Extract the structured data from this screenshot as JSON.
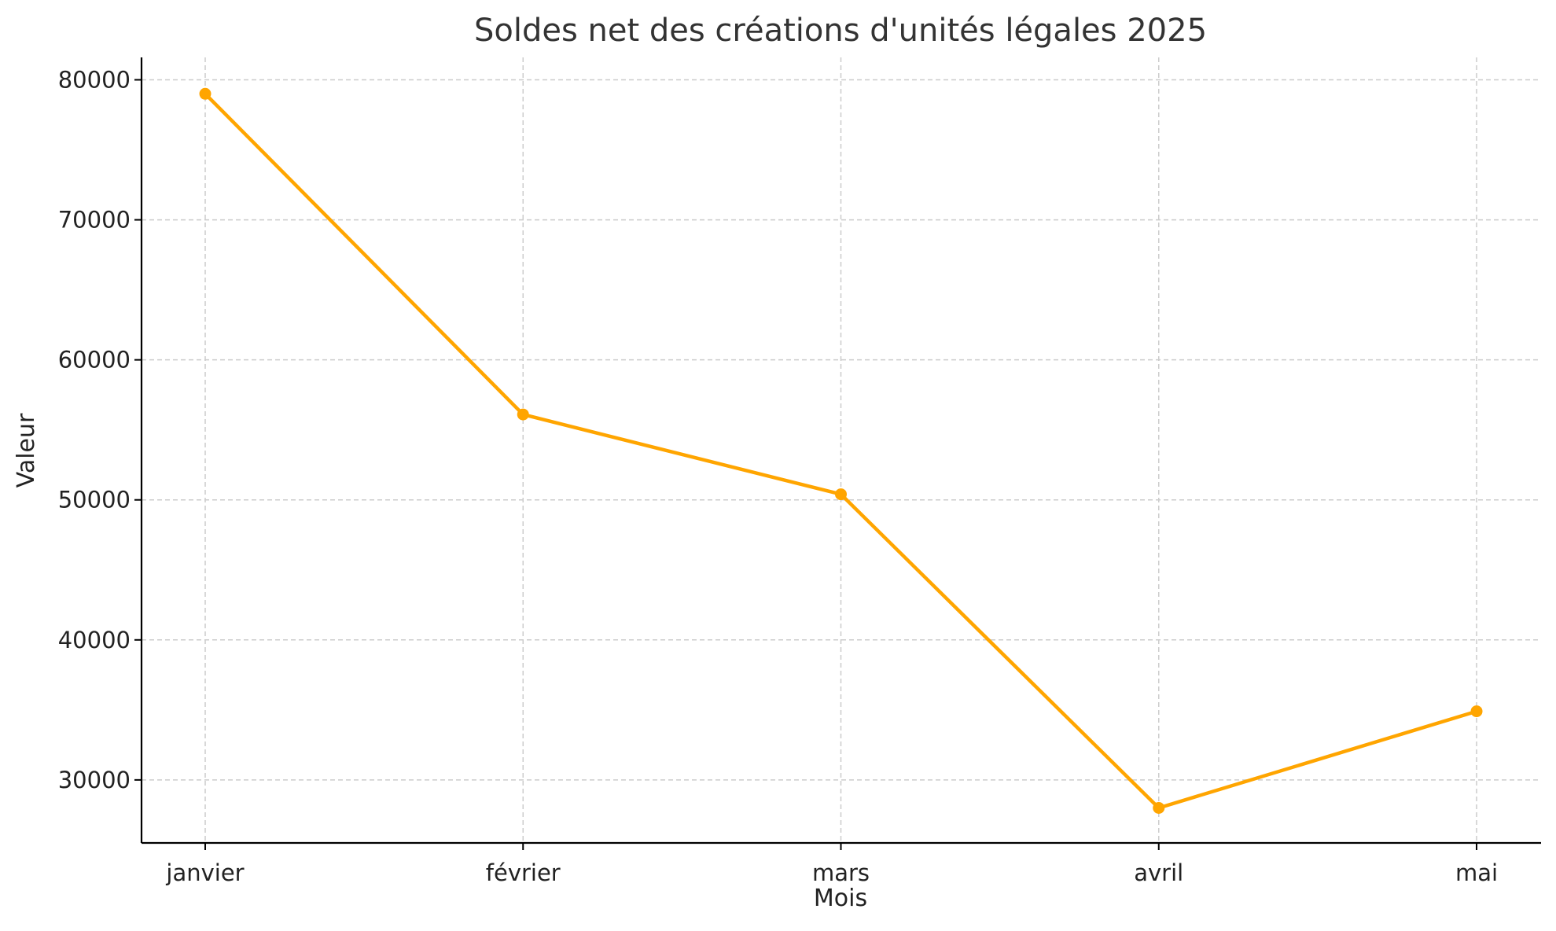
{
  "chart_data": {
    "type": "line",
    "title": "Soldes net des créations d'unités légales 2025",
    "xlabel": "Mois",
    "ylabel": "Valeur",
    "categories": [
      "janvier",
      "février",
      "mars",
      "avril",
      "mai"
    ],
    "series": [
      {
        "values": [
          79000,
          56100,
          50400,
          28000,
          34900
        ],
        "color": "#FFA500"
      }
    ],
    "ylim": [
      25500,
      81600
    ],
    "yticks": [
      30000,
      40000,
      50000,
      60000,
      70000,
      80000
    ],
    "grid": true,
    "grid_style": "dashed",
    "markers": true,
    "colors": {
      "text": "#333333",
      "axis": "#000000",
      "grid": "#cccccc"
    }
  }
}
